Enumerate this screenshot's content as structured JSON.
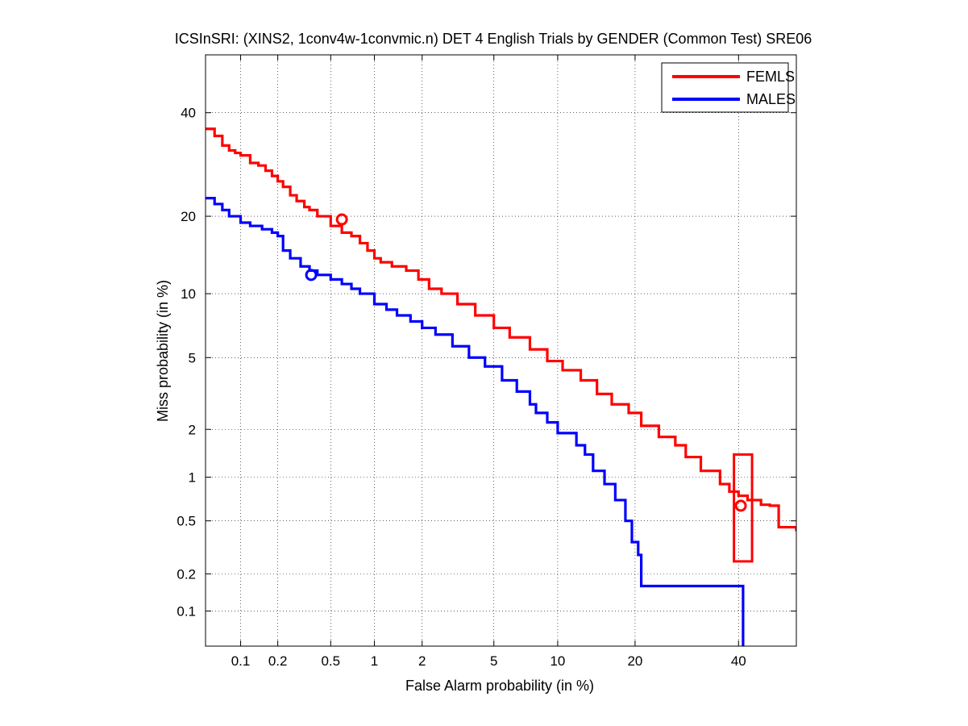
{
  "chart_data": {
    "type": "line",
    "title": "ICSInSRI: (XINS2, 1conv4w-1convmic.n) DET 4 English Trials by GENDER (Common Test) SRE06",
    "xlabel": "False Alarm probability (in %)",
    "ylabel": "Miss probability (in %)",
    "xscale": "probit",
    "yscale": "probit",
    "xlim": [
      0.05,
      53
    ],
    "ylim": [
      0.05,
      53
    ],
    "xticks": [
      0.1,
      0.2,
      0.5,
      1,
      2,
      5,
      10,
      20,
      40
    ],
    "xtick_labels": [
      "0.1",
      "0.2",
      "0.5",
      "1",
      "2",
      "5",
      "10",
      "20",
      "40"
    ],
    "yticks": [
      0.1,
      0.2,
      0.5,
      1,
      2,
      5,
      10,
      20,
      40
    ],
    "ytick_labels": [
      "0.1",
      "0.2",
      "0.5",
      "1",
      "2",
      "5",
      "10",
      "20",
      "40"
    ],
    "grid": true,
    "legend_position": "top-right",
    "series": [
      {
        "name": "FEMLS",
        "color": "#ff0000",
        "x": [
          0.05,
          0.06,
          0.07,
          0.08,
          0.09,
          0.1,
          0.12,
          0.14,
          0.16,
          0.18,
          0.2,
          0.22,
          0.25,
          0.28,
          0.32,
          0.35,
          0.4,
          0.5,
          0.6,
          0.7,
          0.8,
          0.9,
          1.0,
          1.1,
          1.3,
          1.6,
          1.9,
          2.2,
          2.6,
          3.2,
          4.0,
          5.0,
          6.0,
          7.5,
          9.0,
          10.5,
          12.5,
          14.5,
          16.5,
          19.0,
          21.0,
          24.0,
          27.0,
          29.0,
          32.0,
          36.0,
          38.0,
          40.0,
          42.0,
          45.0,
          47.0,
          49.0,
          53.0
        ],
        "y": [
          36.5,
          35.0,
          33.0,
          32.0,
          31.5,
          31.0,
          29.5,
          29.0,
          28.0,
          27.0,
          26.0,
          25.0,
          23.5,
          22.5,
          21.5,
          21.0,
          20.0,
          18.5,
          17.5,
          17.0,
          16.0,
          15.0,
          14.0,
          13.5,
          13.0,
          12.5,
          11.5,
          10.5,
          10.0,
          9.0,
          8.0,
          7.0,
          6.3,
          5.5,
          4.8,
          4.3,
          3.8,
          3.2,
          2.8,
          2.5,
          2.1,
          1.8,
          1.6,
          1.35,
          1.1,
          0.9,
          0.8,
          0.75,
          0.7,
          0.65,
          0.64,
          0.45,
          0.42
        ]
      },
      {
        "name": "MALES",
        "color": "#0000ff",
        "x": [
          0.05,
          0.06,
          0.07,
          0.08,
          0.1,
          0.12,
          0.15,
          0.18,
          0.2,
          0.22,
          0.25,
          0.3,
          0.35,
          0.4,
          0.5,
          0.6,
          0.7,
          0.8,
          1.0,
          1.2,
          1.4,
          1.7,
          2.0,
          2.4,
          3.0,
          3.7,
          4.5,
          5.5,
          6.5,
          7.5,
          8.0,
          9.0,
          10.0,
          12.0,
          13.0,
          14.0,
          15.5,
          17.0,
          18.5,
          19.5,
          20.5,
          21.0,
          40.0,
          41.0
        ],
        "y": [
          23.0,
          22.0,
          21.0,
          20.0,
          19.0,
          18.5,
          18.0,
          17.5,
          17.0,
          15.0,
          14.0,
          13.0,
          12.5,
          12.0,
          11.5,
          11.0,
          10.5,
          10.0,
          9.0,
          8.5,
          8.0,
          7.5,
          7.0,
          6.5,
          5.7,
          5.0,
          4.5,
          3.8,
          3.3,
          2.8,
          2.5,
          2.2,
          1.9,
          1.6,
          1.4,
          1.1,
          0.9,
          0.7,
          0.5,
          0.35,
          0.28,
          0.16,
          0.16,
          0.04
        ]
      }
    ],
    "markers": [
      {
        "series": "FEMLS",
        "shape": "circle",
        "x": 0.6,
        "y": 19.5
      },
      {
        "series": "MALES",
        "shape": "circle",
        "x": 0.36,
        "y": 12.0
      },
      {
        "series": "FEMLS",
        "shape": "circle",
        "x": 40.5,
        "y": 0.64
      }
    ],
    "confidence_box": {
      "series": "FEMLS",
      "x_min": 39.0,
      "x_max": 43.0,
      "y_min": 0.25,
      "y_max": 1.4
    }
  }
}
